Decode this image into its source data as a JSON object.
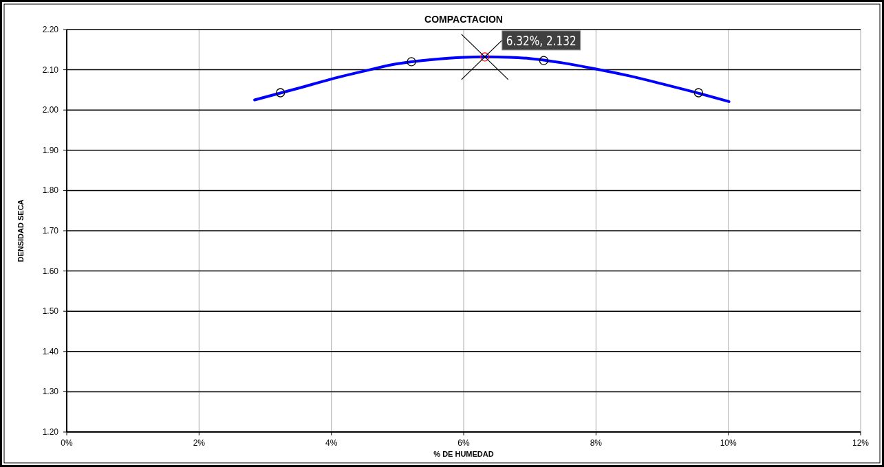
{
  "chart_data": {
    "type": "scatter",
    "title": "COMPACTACION",
    "xlabel": "% DE HUMEDAD",
    "ylabel": "DENSIDAD SECA",
    "xlim": [
      0,
      12
    ],
    "ylim": [
      1.2,
      2.2
    ],
    "xticks": [
      {
        "value": 0,
        "label": "0%"
      },
      {
        "value": 2,
        "label": "2%"
      },
      {
        "value": 4,
        "label": "4%"
      },
      {
        "value": 6,
        "label": "6%"
      },
      {
        "value": 8,
        "label": "8%"
      },
      {
        "value": 10,
        "label": "10%"
      },
      {
        "value": 12,
        "label": "12%"
      }
    ],
    "yticks": [
      {
        "value": 1.2,
        "label": "1.20"
      },
      {
        "value": 1.3,
        "label": "1.30"
      },
      {
        "value": 1.4,
        "label": "1.40"
      },
      {
        "value": 1.5,
        "label": "1.50"
      },
      {
        "value": 1.6,
        "label": "1.60"
      },
      {
        "value": 1.7,
        "label": "1.70"
      },
      {
        "value": 1.8,
        "label": "1.80"
      },
      {
        "value": 1.9,
        "label": "1.90"
      },
      {
        "value": 2.0,
        "label": "2.00"
      },
      {
        "value": 2.1,
        "label": "2.10"
      },
      {
        "value": 2.2,
        "label": "2.20"
      }
    ],
    "grid": true,
    "series": [
      {
        "type": "line",
        "marker": "none",
        "color": "#0000ff",
        "x": [
          2.84,
          3.5,
          4,
          4.5,
          5,
          5.5,
          6,
          6.32,
          6.7,
          7,
          7.5,
          8,
          8.5,
          9,
          9.5,
          10.01
        ],
        "values": [
          2.025,
          2.054,
          2.077,
          2.097,
          2.115,
          2.125,
          2.131,
          2.132,
          2.131,
          2.128,
          2.117,
          2.102,
          2.085,
          2.065,
          2.044,
          2.021
        ]
      },
      {
        "marker": "circle",
        "color": "#000000",
        "x": [
          3.23,
          5.21,
          7.21,
          9.55
        ],
        "values": [
          2.043,
          2.12,
          2.123,
          2.043
        ]
      },
      {
        "marker": "circle",
        "color": "#ff0000",
        "x": [
          6.32
        ],
        "values": [
          2.132
        ]
      }
    ],
    "annotations": [
      {
        "text": "6.32%, 2.132",
        "x": 6.32,
        "y": 2.132
      }
    ]
  }
}
